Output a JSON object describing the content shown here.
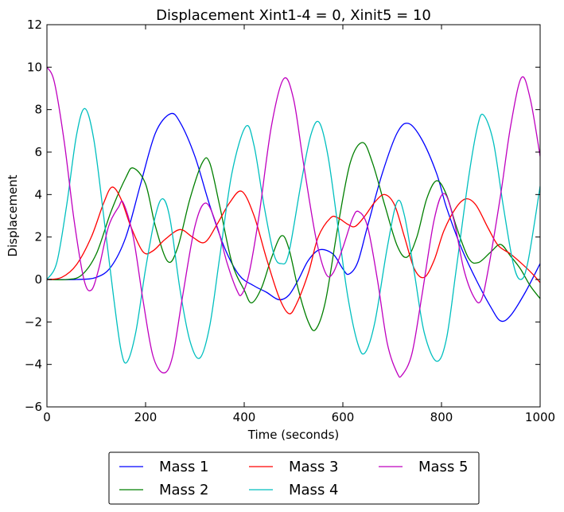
{
  "chart_data": {
    "type": "line",
    "title": "Displacement Xint1-4 = 0, Xinit5 = 10",
    "xlabel": "Time (seconds)",
    "ylabel": "Displacement",
    "xlim": [
      0,
      1000
    ],
    "ylim": [
      -6,
      12
    ],
    "x_ticks": [
      0,
      200,
      400,
      600,
      800,
      1000
    ],
    "y_ticks": [
      -6,
      -4,
      -2,
      0,
      2,
      4,
      6,
      8,
      10,
      12
    ],
    "x_tick_labels": [
      "0",
      "200",
      "400",
      "600",
      "800",
      "1000"
    ],
    "y_tick_labels": [
      "−6",
      "−4",
      "−2",
      "0",
      "2",
      "4",
      "6",
      "8",
      "10",
      "12"
    ],
    "grid": false,
    "legend_position": "bottom-outside",
    "series": [
      {
        "name": "Mass 1",
        "color": "#0000ff",
        "points": [
          [
            0,
            0
          ],
          [
            60,
            0
          ],
          [
            100,
            0.1
          ],
          [
            130,
            0.6
          ],
          [
            160,
            2.0
          ],
          [
            190,
            4.5
          ],
          [
            220,
            6.9
          ],
          [
            250,
            7.8
          ],
          [
            270,
            7.4
          ],
          [
            300,
            5.8
          ],
          [
            330,
            3.5
          ],
          [
            360,
            1.5
          ],
          [
            390,
            0.2
          ],
          [
            420,
            -0.3
          ],
          [
            445,
            -0.6
          ],
          [
            470,
            -0.95
          ],
          [
            490,
            -0.75
          ],
          [
            510,
            0.0
          ],
          [
            530,
            0.9
          ],
          [
            553,
            1.4
          ],
          [
            580,
            1.2
          ],
          [
            600,
            0.5
          ],
          [
            612,
            0.25
          ],
          [
            630,
            0.8
          ],
          [
            650,
            2.5
          ],
          [
            680,
            5.0
          ],
          [
            710,
            6.9
          ],
          [
            733,
            7.35
          ],
          [
            760,
            6.6
          ],
          [
            790,
            5.0
          ],
          [
            810,
            3.4
          ],
          [
            840,
            1.5
          ],
          [
            870,
            0.0
          ],
          [
            900,
            -1.3
          ],
          [
            920,
            -1.95
          ],
          [
            940,
            -1.7
          ],
          [
            970,
            -0.6
          ],
          [
            1000,
            0.75
          ]
        ]
      },
      {
        "name": "Mass 2",
        "color": "#007f00",
        "points": [
          [
            0,
            0
          ],
          [
            40,
            0
          ],
          [
            70,
            0.2
          ],
          [
            100,
            1.2
          ],
          [
            130,
            3.2
          ],
          [
            160,
            4.8
          ],
          [
            175,
            5.25
          ],
          [
            200,
            4.5
          ],
          [
            220,
            2.5
          ],
          [
            245,
            0.85
          ],
          [
            265,
            1.5
          ],
          [
            290,
            3.8
          ],
          [
            315,
            5.5
          ],
          [
            330,
            5.5
          ],
          [
            350,
            3.5
          ],
          [
            375,
            0.8
          ],
          [
            400,
            -0.5
          ],
          [
            415,
            -1.1
          ],
          [
            435,
            -0.4
          ],
          [
            455,
            1.0
          ],
          [
            475,
            2.05
          ],
          [
            490,
            1.5
          ],
          [
            510,
            -0.5
          ],
          [
            530,
            -2.0
          ],
          [
            545,
            -2.35
          ],
          [
            565,
            -1.0
          ],
          [
            590,
            2.5
          ],
          [
            615,
            5.5
          ],
          [
            640,
            6.45
          ],
          [
            660,
            5.5
          ],
          [
            685,
            3.5
          ],
          [
            710,
            1.6
          ],
          [
            730,
            1.05
          ],
          [
            750,
            2.0
          ],
          [
            770,
            3.8
          ],
          [
            790,
            4.65
          ],
          [
            810,
            4.0
          ],
          [
            830,
            2.5
          ],
          [
            855,
            1.0
          ],
          [
            875,
            0.8
          ],
          [
            900,
            1.3
          ],
          [
            920,
            1.65
          ],
          [
            940,
            1.1
          ],
          [
            960,
            0.5
          ],
          [
            980,
            -0.3
          ],
          [
            1000,
            -0.9
          ]
        ]
      },
      {
        "name": "Mass 3",
        "color": "#ff0000",
        "points": [
          [
            0,
            0
          ],
          [
            30,
            0.1
          ],
          [
            60,
            0.7
          ],
          [
            90,
            2.0
          ],
          [
            115,
            3.6
          ],
          [
            132,
            4.35
          ],
          [
            150,
            3.8
          ],
          [
            170,
            2.5
          ],
          [
            195,
            1.3
          ],
          [
            215,
            1.35
          ],
          [
            240,
            1.9
          ],
          [
            270,
            2.35
          ],
          [
            295,
            2.0
          ],
          [
            320,
            1.75
          ],
          [
            345,
            2.6
          ],
          [
            370,
            3.6
          ],
          [
            395,
            4.15
          ],
          [
            420,
            3.0
          ],
          [
            445,
            1.0
          ],
          [
            470,
            -0.8
          ],
          [
            490,
            -1.6
          ],
          [
            505,
            -1.2
          ],
          [
            530,
            0.3
          ],
          [
            550,
            2.0
          ],
          [
            575,
            2.9
          ],
          [
            590,
            2.9
          ],
          [
            610,
            2.6
          ],
          [
            625,
            2.5
          ],
          [
            645,
            3.0
          ],
          [
            665,
            3.65
          ],
          [
            685,
            4.0
          ],
          [
            705,
            3.5
          ],
          [
            725,
            2.0
          ],
          [
            745,
            0.5
          ],
          [
            765,
            0.1
          ],
          [
            785,
            0.9
          ],
          [
            805,
            2.3
          ],
          [
            830,
            3.4
          ],
          [
            850,
            3.8
          ],
          [
            870,
            3.5
          ],
          [
            895,
            2.4
          ],
          [
            915,
            1.6
          ],
          [
            940,
            1.2
          ],
          [
            965,
            0.7
          ],
          [
            985,
            0.25
          ],
          [
            1000,
            -0.15
          ]
        ]
      },
      {
        "name": "Mass 4",
        "color": "#00bfbf",
        "points": [
          [
            0,
            0
          ],
          [
            20,
            0.8
          ],
          [
            40,
            3.5
          ],
          [
            60,
            6.8
          ],
          [
            77,
            8.05
          ],
          [
            95,
            6.6
          ],
          [
            115,
            3.0
          ],
          [
            135,
            -0.8
          ],
          [
            150,
            -3.3
          ],
          [
            162,
            -3.9
          ],
          [
            180,
            -2.5
          ],
          [
            200,
            0.5
          ],
          [
            220,
            3.0
          ],
          [
            235,
            3.8
          ],
          [
            250,
            2.8
          ],
          [
            270,
            -0.5
          ],
          [
            290,
            -2.9
          ],
          [
            310,
            -3.7
          ],
          [
            330,
            -2.2
          ],
          [
            350,
            1.0
          ],
          [
            375,
            5.0
          ],
          [
            403,
            7.2
          ],
          [
            420,
            6.3
          ],
          [
            440,
            3.5
          ],
          [
            460,
            1.2
          ],
          [
            475,
            0.75
          ],
          [
            490,
            1.2
          ],
          [
            515,
            4.5
          ],
          [
            535,
            6.8
          ],
          [
            552,
            7.4
          ],
          [
            570,
            5.8
          ],
          [
            590,
            2.5
          ],
          [
            610,
            -0.8
          ],
          [
            630,
            -3.0
          ],
          [
            645,
            -3.45
          ],
          [
            665,
            -2.0
          ],
          [
            690,
            1.5
          ],
          [
            710,
            3.65
          ],
          [
            725,
            3.0
          ],
          [
            745,
            0.3
          ],
          [
            765,
            -2.5
          ],
          [
            790,
            -3.85
          ],
          [
            810,
            -2.8
          ],
          [
            830,
            0.5
          ],
          [
            855,
            4.8
          ],
          [
            873,
            7.2
          ],
          [
            885,
            7.75
          ],
          [
            905,
            6.5
          ],
          [
            925,
            3.5
          ],
          [
            945,
            0.8
          ],
          [
            960,
            0.0
          ],
          [
            975,
            0.8
          ],
          [
            1000,
            4.4
          ]
        ]
      },
      {
        "name": "Mass 5",
        "color": "#bf00bf",
        "points": [
          [
            0,
            10
          ],
          [
            15,
            9.3
          ],
          [
            35,
            6.5
          ],
          [
            55,
            2.8
          ],
          [
            75,
            0.0
          ],
          [
            90,
            -0.5
          ],
          [
            105,
            0.5
          ],
          [
            125,
            2.5
          ],
          [
            145,
            3.4
          ],
          [
            155,
            3.6
          ],
          [
            175,
            2.0
          ],
          [
            195,
            -1.0
          ],
          [
            215,
            -3.6
          ],
          [
            237,
            -4.4
          ],
          [
            255,
            -3.6
          ],
          [
            275,
            -0.8
          ],
          [
            300,
            2.5
          ],
          [
            322,
            3.6
          ],
          [
            345,
            2.5
          ],
          [
            365,
            0.8
          ],
          [
            385,
            -0.5
          ],
          [
            395,
            -0.7
          ],
          [
            410,
            0.3
          ],
          [
            430,
            3.0
          ],
          [
            455,
            7.2
          ],
          [
            480,
            9.45
          ],
          [
            500,
            8.5
          ],
          [
            520,
            5.5
          ],
          [
            545,
            2.0
          ],
          [
            565,
            0.3
          ],
          [
            580,
            0.3
          ],
          [
            600,
            1.5
          ],
          [
            620,
            2.9
          ],
          [
            632,
            3.2
          ],
          [
            650,
            2.5
          ],
          [
            670,
            0.0
          ],
          [
            690,
            -3.0
          ],
          [
            710,
            -4.4
          ],
          [
            720,
            -4.5
          ],
          [
            740,
            -3.5
          ],
          [
            760,
            -0.8
          ],
          [
            785,
            2.8
          ],
          [
            805,
            4.05
          ],
          [
            825,
            2.8
          ],
          [
            845,
            0.5
          ],
          [
            865,
            -0.8
          ],
          [
            880,
            -1.0
          ],
          [
            895,
            0.5
          ],
          [
            920,
            4.0
          ],
          [
            940,
            7.2
          ],
          [
            962,
            9.5
          ],
          [
            980,
            8.5
          ],
          [
            1000,
            5.8
          ]
        ]
      }
    ]
  }
}
